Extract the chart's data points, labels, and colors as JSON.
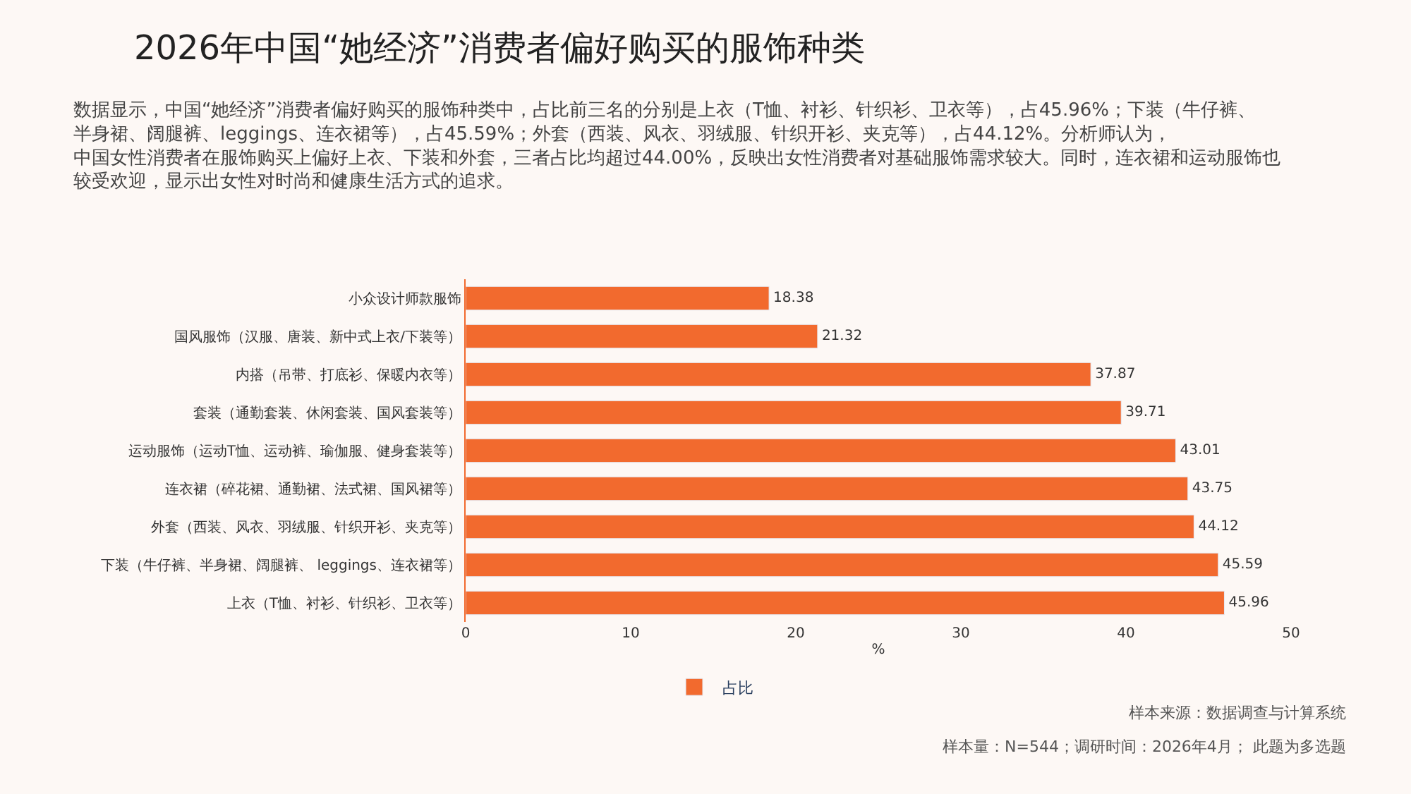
{
  "chart_data": {
    "type": "bar",
    "orientation": "horizontal",
    "title": "2026年中国“她经济”消费者偏好购买的服饰种类",
    "subtitle": "数据显示，中国“她经济”消费者偏好购买的服饰种类中，占比前三名的分别是上衣（T恤、衬衫、针织衫、卫衣等），占45.96%；下装（牛仔裤、半身裙、阔腿裤、leggings、连衣裙等），占45.59%；外套（西装、风衣、羽绒服、针织开衫、夹克等），占44.12%。分析师认为，中国女性消费者在服饰购买上偏好上衣、下装和外套，三者占比均超过44.00%，反映出女性消费者对基础服饰需求较大。同时，连衣裙和运动服饰也较受欢迎，显示出女性对时尚和健康生活方式的追求。",
    "categories": [
      "小众设计师款服饰",
      "国风服饰（汉服、唐装、新中式上衣/下装等）",
      "内搭（吊带、打底衫、保暖内衣等）",
      "套装（通勤套装、休闲套装、国风套装等）",
      "运动服饰（运动T恤、运动裤、瑜伽服、健身套装等）",
      "连衣裙（碎花裙、通勤裙、法式裙、国风裙等）",
      "外套（西装、风衣、羽绒服、针织开衫、夹克等）",
      "下装（牛仔裤、半身裙、阔腿裤、 leggings、连衣裙等）",
      "上衣（T恤、衬衫、针织衫、卫衣等）"
    ],
    "series": [
      {
        "name": "占比",
        "color": "#f26a2e",
        "values": [
          18.38,
          21.32,
          37.87,
          39.71,
          43.01,
          43.75,
          44.12,
          45.59,
          45.96
        ]
      }
    ],
    "xlabel": "%",
    "xlim": [
      0,
      50
    ],
    "xticks": [
      0,
      10,
      20,
      30,
      40,
      50
    ],
    "data_labels": true,
    "legend": "bottom",
    "grid": false,
    "annotations": [
      "样本来源：数据调查与计算系统",
      "样本量：N=544；调研时间：2026年4月； 此题为多选题"
    ]
  }
}
